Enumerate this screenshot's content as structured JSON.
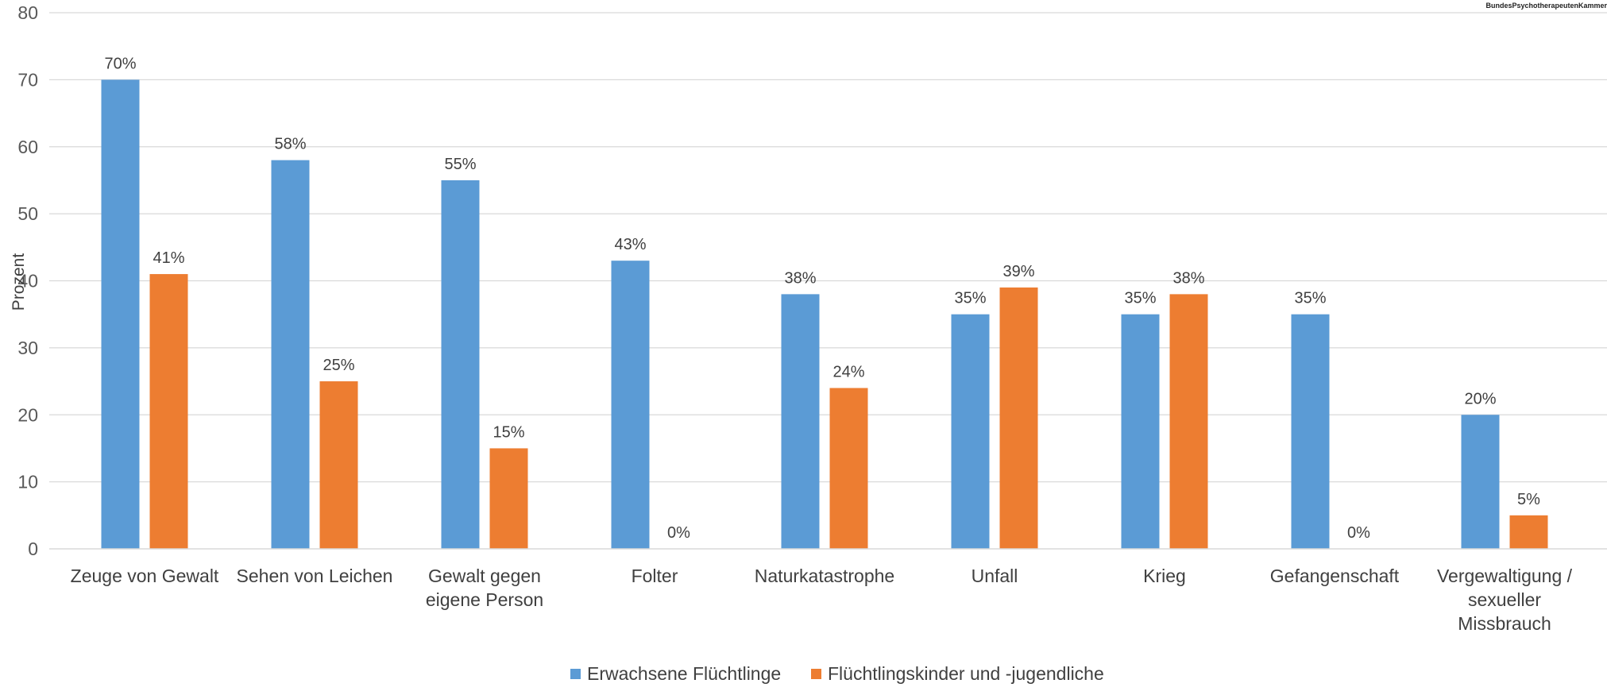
{
  "logo": {
    "text": "BundesPsychotherapeutenKammer"
  },
  "chart_data": {
    "type": "bar",
    "ylabel": "Prozent",
    "ylim": [
      0,
      80
    ],
    "yticks": [
      "0",
      "10",
      "20",
      "30",
      "40",
      "50",
      "60",
      "70",
      "80"
    ],
    "grid": true,
    "legend_position": "bottom",
    "categories": [
      [
        "Zeuge von Gewalt"
      ],
      [
        "Sehen von Leichen"
      ],
      [
        "Gewalt gegen",
        "eigene Person"
      ],
      [
        "Folter"
      ],
      [
        "Naturkatastrophe"
      ],
      [
        "Unfall"
      ],
      [
        "Krieg"
      ],
      [
        "Gefangenschaft"
      ],
      [
        "Vergewaltigung /",
        "sexueller",
        "Missbrauch"
      ]
    ],
    "series": [
      {
        "name": "Erwachsene Flüchtlinge",
        "color": "#5B9BD5",
        "values": [
          70,
          58,
          55,
          43,
          38,
          35,
          35,
          35,
          20
        ],
        "labels": [
          "70%",
          "58%",
          "55%",
          "43%",
          "38%",
          "35%",
          "35%",
          "35%",
          "20%"
        ]
      },
      {
        "name": "Flüchtlingskinder und -jugendliche",
        "color": "#ED7D31",
        "values": [
          41,
          25,
          15,
          0,
          24,
          39,
          38,
          0,
          5
        ],
        "labels": [
          "41%",
          "25%",
          "15%",
          "0%",
          "24%",
          "39%",
          "38%",
          "0%",
          "5%"
        ]
      }
    ]
  }
}
